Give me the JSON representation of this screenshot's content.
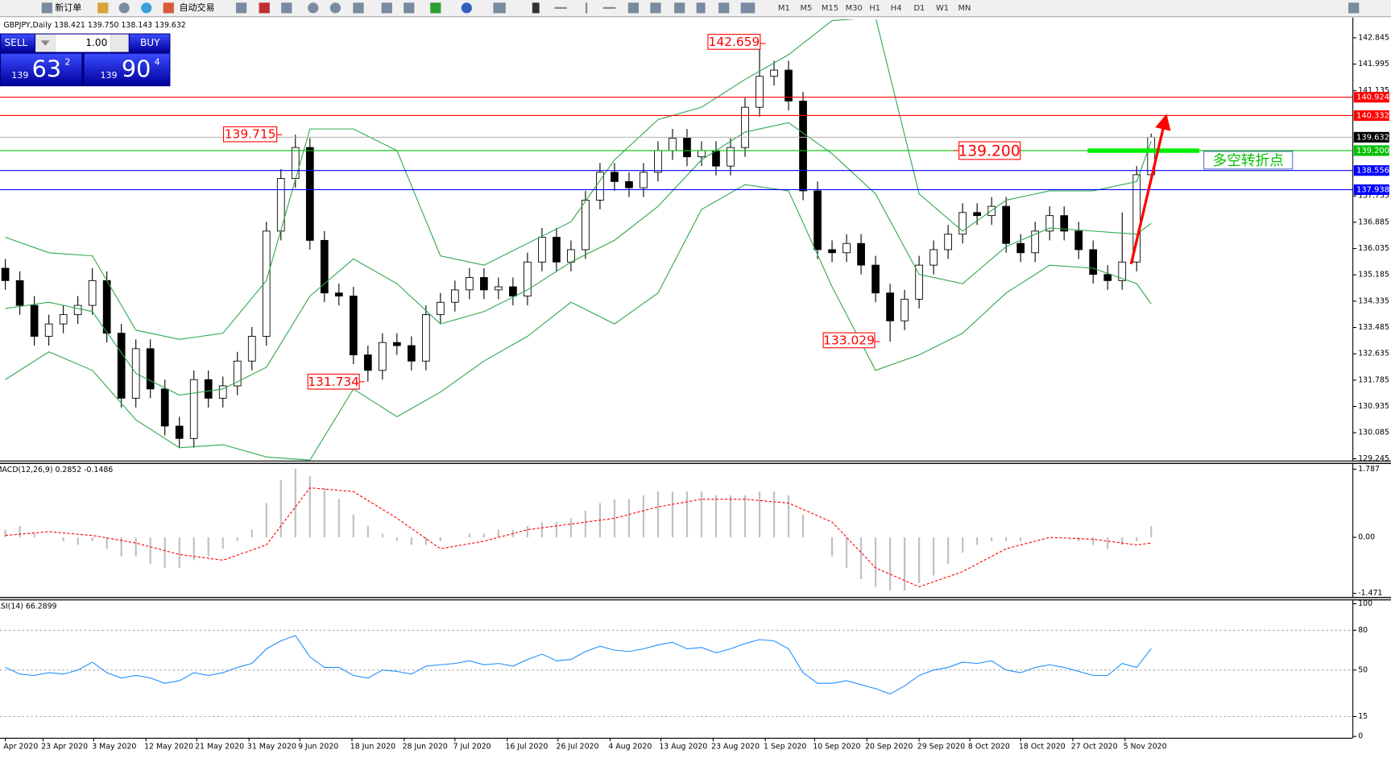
{
  "toolbar": {
    "buttons": [
      "新订单",
      "自动交易"
    ],
    "timeframes": [
      "M1",
      "M5",
      "M15",
      "M30",
      "H1",
      "H4",
      "D1",
      "W1",
      "MN"
    ]
  },
  "trade_panel": {
    "sell": "SELL",
    "buy": "BUY",
    "lots": "1.00",
    "bid_big": "139",
    "bid_main": "63",
    "bid_small": "2",
    "ask_big": "139",
    "ask_main": "90",
    "ask_small": "4"
  },
  "chart_data": [
    {
      "type": "candlestick",
      "title": "GBPJPY,Daily 138.421 139.750 138.143 139.632",
      "ylim": [
        129.19,
        143.44
      ],
      "yticks": [
        142.845,
        141.995,
        141.135,
        137.735,
        136.885,
        136.035,
        135.185,
        134.335,
        133.485,
        132.635,
        131.785,
        130.935,
        130.085,
        129.245
      ],
      "xticks": [
        {
          "value": 0,
          "label": "Apr 2020"
        },
        {
          "value": 2.6,
          "label": "23 Apr 2020"
        },
        {
          "value": 6.1,
          "label": "3 May 2020"
        },
        {
          "value": 9.7,
          "label": "12 May 2020"
        },
        {
          "value": 13.2,
          "label": "21 May 2020"
        },
        {
          "value": 16.8,
          "label": "31 May 2020"
        },
        {
          "value": 20.3,
          "label": "9 Jun 2020"
        },
        {
          "value": 23.9,
          "label": "18 Jun 2020"
        },
        {
          "value": 27.5,
          "label": "28 Jun 2020"
        },
        {
          "value": 31.0,
          "label": "7 Jul 2020"
        },
        {
          "value": 34.6,
          "label": "16 Jul 2020"
        },
        {
          "value": 38.1,
          "label": "26 Jul 2020"
        },
        {
          "value": 41.7,
          "label": "4 Aug 2020"
        },
        {
          "value": 45.2,
          "label": "13 Aug 2020"
        },
        {
          "value": 48.8,
          "label": "23 Aug 2020"
        },
        {
          "value": 52.4,
          "label": "1 Sep 2020"
        },
        {
          "value": 55.8,
          "label": "10 Sep 2020"
        },
        {
          "value": 59.4,
          "label": "20 Sep 2020"
        },
        {
          "value": 63.0,
          "label": "29 Sep 2020"
        },
        {
          "value": 66.5,
          "label": "8 Oct 2020"
        },
        {
          "value": 70.0,
          "label": "18 Oct 2020"
        },
        {
          "value": 73.6,
          "label": "27 Oct 2020"
        },
        {
          "value": 77.2,
          "label": "5 Nov 2020"
        }
      ],
      "ohlc": [
        [
          135.4,
          135.7,
          134.7,
          135.0
        ],
        [
          135.0,
          135.3,
          133.9,
          134.2
        ],
        [
          134.2,
          134.5,
          132.9,
          133.2
        ],
        [
          133.2,
          133.9,
          132.9,
          133.6
        ],
        [
          133.6,
          134.2,
          133.3,
          133.9
        ],
        [
          133.9,
          134.5,
          133.6,
          134.2
        ],
        [
          134.2,
          135.4,
          133.9,
          135.0
        ],
        [
          135.0,
          135.3,
          133.0,
          133.3
        ],
        [
          133.3,
          133.6,
          130.9,
          131.2
        ],
        [
          131.2,
          133.1,
          130.9,
          132.8
        ],
        [
          132.8,
          133.1,
          131.2,
          131.5
        ],
        [
          131.5,
          131.8,
          130.0,
          130.3
        ],
        [
          130.3,
          130.6,
          129.6,
          129.9
        ],
        [
          129.9,
          132.1,
          129.6,
          131.8
        ],
        [
          131.8,
          132.1,
          130.9,
          131.2
        ],
        [
          131.2,
          131.9,
          130.9,
          131.6
        ],
        [
          131.6,
          132.7,
          131.3,
          132.4
        ],
        [
          132.4,
          133.5,
          132.1,
          133.2
        ],
        [
          133.2,
          136.9,
          132.9,
          136.6
        ],
        [
          136.6,
          138.6,
          136.3,
          138.3
        ],
        [
          138.3,
          139.715,
          138.0,
          139.3
        ],
        [
          139.3,
          139.6,
          136.0,
          136.3
        ],
        [
          136.3,
          136.6,
          134.3,
          134.6
        ],
        [
          134.6,
          134.9,
          134.2,
          134.5
        ],
        [
          134.5,
          134.8,
          132.3,
          132.6
        ],
        [
          132.6,
          132.9,
          131.734,
          132.1
        ],
        [
          132.1,
          133.3,
          131.8,
          133.0
        ],
        [
          133.0,
          133.3,
          132.6,
          132.9
        ],
        [
          132.9,
          133.2,
          132.1,
          132.4
        ],
        [
          132.4,
          134.2,
          132.1,
          133.9
        ],
        [
          133.9,
          134.6,
          133.6,
          134.3
        ],
        [
          134.3,
          135.0,
          134.0,
          134.7
        ],
        [
          134.7,
          135.4,
          134.4,
          135.1
        ],
        [
          135.1,
          135.4,
          134.4,
          134.7
        ],
        [
          134.7,
          135.1,
          134.4,
          134.8
        ],
        [
          134.8,
          135.1,
          134.2,
          134.5
        ],
        [
          134.5,
          135.9,
          134.2,
          135.6
        ],
        [
          135.6,
          136.7,
          135.3,
          136.4
        ],
        [
          136.4,
          136.7,
          135.3,
          135.6
        ],
        [
          135.6,
          136.3,
          135.3,
          136.0
        ],
        [
          136.0,
          137.9,
          135.7,
          137.6
        ],
        [
          137.6,
          138.8,
          137.3,
          138.5
        ],
        [
          138.5,
          138.8,
          137.9,
          138.2
        ],
        [
          138.2,
          138.5,
          137.7,
          138.0
        ],
        [
          138.0,
          138.8,
          137.7,
          138.5
        ],
        [
          138.5,
          139.5,
          138.2,
          139.2
        ],
        [
          139.2,
          139.9,
          138.9,
          139.6
        ],
        [
          139.6,
          139.9,
          138.7,
          139.0
        ],
        [
          139.0,
          139.5,
          138.7,
          139.2
        ],
        [
          139.2,
          139.5,
          138.4,
          138.7
        ],
        [
          138.7,
          139.6,
          138.4,
          139.3
        ],
        [
          139.3,
          140.9,
          139.0,
          140.6
        ],
        [
          140.6,
          142.659,
          140.3,
          141.6
        ],
        [
          141.6,
          142.1,
          141.3,
          141.8
        ],
        [
          141.8,
          142.1,
          140.5,
          140.8
        ],
        [
          140.8,
          141.1,
          137.6,
          137.9
        ],
        [
          137.9,
          138.2,
          135.7,
          136.0
        ],
        [
          136.0,
          136.3,
          135.6,
          135.9
        ],
        [
          135.9,
          136.5,
          135.6,
          136.2
        ],
        [
          136.2,
          136.5,
          135.2,
          135.5
        ],
        [
          135.5,
          135.8,
          134.3,
          134.6
        ],
        [
          134.6,
          134.9,
          133.029,
          133.7
        ],
        [
          133.7,
          134.7,
          133.4,
          134.4
        ],
        [
          134.4,
          135.8,
          134.1,
          135.5
        ],
        [
          135.5,
          136.3,
          135.2,
          136.0
        ],
        [
          136.0,
          136.8,
          135.7,
          136.5
        ],
        [
          136.5,
          137.5,
          136.2,
          137.2
        ],
        [
          137.2,
          137.5,
          136.8,
          137.1
        ],
        [
          137.1,
          137.7,
          136.8,
          137.4
        ],
        [
          137.4,
          137.7,
          135.9,
          136.2
        ],
        [
          136.2,
          136.5,
          135.6,
          135.9
        ],
        [
          135.9,
          136.9,
          135.6,
          136.6
        ],
        [
          136.6,
          137.4,
          136.3,
          137.1
        ],
        [
          137.1,
          137.4,
          136.3,
          136.6
        ],
        [
          136.6,
          136.9,
          135.7,
          136.0
        ],
        [
          136.0,
          136.3,
          134.9,
          135.2
        ],
        [
          135.2,
          135.5,
          134.7,
          135.0
        ],
        [
          135.0,
          137.2,
          134.7,
          135.6
        ],
        [
          135.6,
          138.7,
          135.3,
          138.421
        ],
        [
          138.421,
          139.75,
          138.143,
          139.632
        ]
      ],
      "bands": {
        "color": "#2fa84f",
        "x": [
          0,
          3,
          6,
          9,
          12,
          15,
          18,
          21,
          24,
          27,
          30,
          33,
          36,
          39,
          42,
          45,
          48,
          51,
          54,
          57,
          60,
          63,
          66,
          69,
          72,
          75,
          78,
          79
        ],
        "upper": [
          136.4,
          135.9,
          135.8,
          133.4,
          133.1,
          133.3,
          135.0,
          139.9,
          139.9,
          139.2,
          135.8,
          135.5,
          136.2,
          136.9,
          138.9,
          140.2,
          140.6,
          141.5,
          142.3,
          143.4,
          143.5,
          137.8,
          136.6,
          137.6,
          137.9,
          137.9,
          138.2,
          139.5
        ],
        "middle": [
          134.1,
          134.3,
          134.0,
          132.0,
          131.3,
          131.5,
          132.2,
          134.5,
          135.7,
          134.9,
          133.6,
          134.0,
          134.7,
          135.6,
          136.3,
          137.4,
          138.9,
          139.8,
          140.1,
          139.1,
          137.8,
          135.2,
          134.9,
          136.1,
          136.7,
          136.6,
          136.5,
          136.85
        ],
        "lower": [
          131.8,
          132.7,
          132.1,
          130.5,
          129.6,
          129.7,
          129.3,
          129.2,
          131.5,
          130.6,
          131.4,
          132.4,
          133.2,
          134.3,
          133.6,
          134.6,
          137.3,
          138.1,
          137.9,
          134.8,
          132.1,
          132.6,
          133.3,
          134.6,
          135.5,
          135.4,
          134.9,
          134.25
        ]
      },
      "levels": [
        {
          "value": 140.924,
          "color": "#ff0000"
        },
        {
          "value": 140.332,
          "color": "#ff0000"
        },
        {
          "value": 139.632,
          "color": "#000000"
        },
        {
          "value": 139.2,
          "label": "139.200",
          "color": "#00c000"
        },
        {
          "value": 138.556,
          "color": "#0000ff"
        },
        {
          "value": 137.938,
          "color": "#0000ff"
        }
      ],
      "annotations": {
        "price_labels": [
          142.659,
          139.715,
          131.734,
          133.029
        ],
        "signal_price": "139.200",
        "signal_text": "多空转折点"
      }
    },
    {
      "type": "macd",
      "title": "MACD(12,26,9) 0.2852 -0.1486",
      "ylim": [
        -1.563,
        1.926
      ],
      "yticks": [
        1.787,
        {
          "value": 0,
          "label": "0.00"
        },
        -1.471
      ],
      "histogram": [
        0.2,
        0.3,
        0.1,
        0.0,
        -0.1,
        -0.2,
        -0.1,
        -0.3,
        -0.5,
        -0.5,
        -0.7,
        -0.8,
        -0.8,
        -0.6,
        -0.5,
        -0.3,
        -0.1,
        0.2,
        0.9,
        1.5,
        1.8,
        1.6,
        1.3,
        1.0,
        0.6,
        0.3,
        0.1,
        -0.1,
        -0.2,
        -0.2,
        -0.1,
        0.0,
        0.1,
        0.1,
        0.2,
        0.2,
        0.3,
        0.4,
        0.4,
        0.5,
        0.7,
        0.9,
        1.0,
        1.0,
        1.1,
        1.2,
        1.2,
        1.2,
        1.2,
        1.1,
        1.1,
        1.1,
        1.2,
        1.2,
        1.1,
        0.6,
        0.0,
        -0.5,
        -0.8,
        -1.1,
        -1.3,
        -1.4,
        -1.4,
        -1.2,
        -1.0,
        -0.7,
        -0.4,
        -0.2,
        -0.1,
        -0.1,
        -0.1,
        0.0,
        0.0,
        0.0,
        -0.1,
        -0.2,
        -0.3,
        -0.2,
        -0.1,
        0.29
      ],
      "signal": {
        "x": [
          0,
          3,
          6,
          9,
          12,
          15,
          18,
          21,
          24,
          27,
          30,
          33,
          36,
          39,
          42,
          45,
          48,
          51,
          54,
          57,
          60,
          63,
          66,
          69,
          72,
          75,
          78,
          79
        ],
        "values": [
          0.05,
          0.15,
          0.05,
          -0.15,
          -0.45,
          -0.6,
          -0.2,
          1.3,
          1.2,
          0.5,
          -0.3,
          -0.1,
          0.2,
          0.35,
          0.5,
          0.8,
          1.0,
          1.0,
          0.9,
          0.4,
          -0.8,
          -1.3,
          -0.9,
          -0.3,
          0.0,
          -0.05,
          -0.2,
          -0.15
        ]
      },
      "hist_color": "#c0c0c0",
      "signal_color": "#ff0000"
    },
    {
      "type": "rsi",
      "title": "RSI(14) 66.2899",
      "ylim": [
        -1,
        102.5
      ],
      "yticks": [
        100,
        80,
        50,
        15,
        0
      ],
      "color": "#1e90ff",
      "values": [
        52,
        47,
        46,
        48,
        47,
        50,
        56,
        48,
        44,
        46,
        44,
        40,
        42,
        48,
        46,
        48,
        52,
        55,
        66,
        72,
        76,
        60,
        52,
        52,
        46,
        44,
        50,
        49,
        47,
        53,
        54,
        55,
        57,
        54,
        55,
        53,
        58,
        62,
        57,
        58,
        64,
        68,
        65,
        64,
        66,
        69,
        71,
        66,
        67,
        63,
        66,
        70,
        73,
        72,
        66,
        48,
        40,
        40,
        42,
        39,
        36,
        32,
        38,
        46,
        50,
        52,
        56,
        55,
        57,
        50,
        48,
        52,
        54,
        52,
        49,
        46,
        46,
        55,
        52,
        66.29
      ]
    }
  ]
}
